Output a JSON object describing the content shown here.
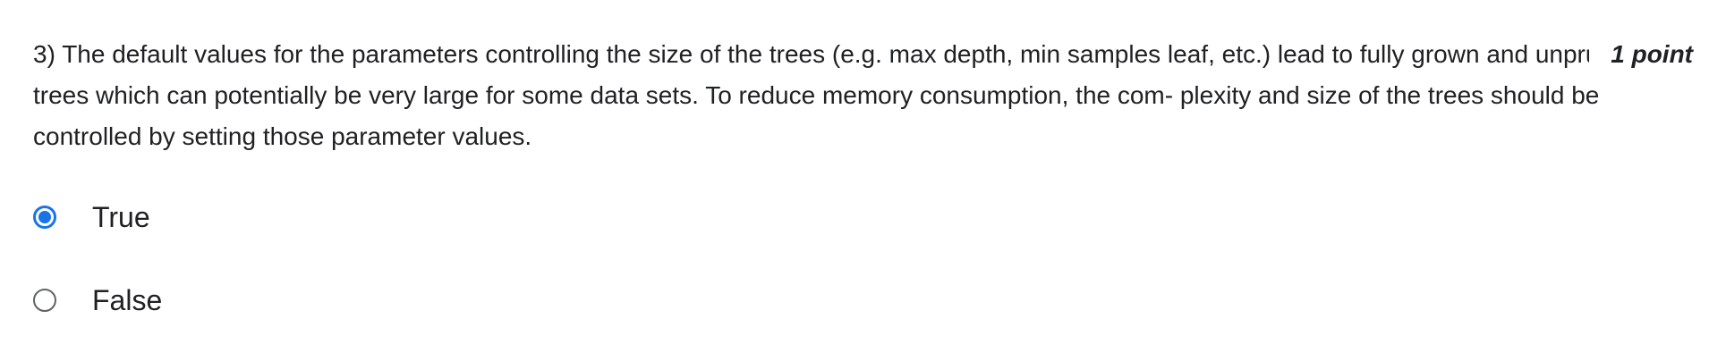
{
  "question": {
    "number_label": "3)",
    "text": "The default values for the parameters controlling the size of the trees (e.g. max depth, min samples leaf, etc.) lead to fully grown and unpruned trees which can potentially be very large for some data sets. To reduce memory consumption, the com- plexity and size of the trees should be controlled by setting those parameter values.",
    "points": "1 point"
  },
  "options": [
    {
      "label": "True",
      "selected": true
    },
    {
      "label": "False",
      "selected": false
    }
  ],
  "colors": {
    "accent": "#1a73e8",
    "text": "#202124",
    "radio_border": "#5f6368"
  }
}
